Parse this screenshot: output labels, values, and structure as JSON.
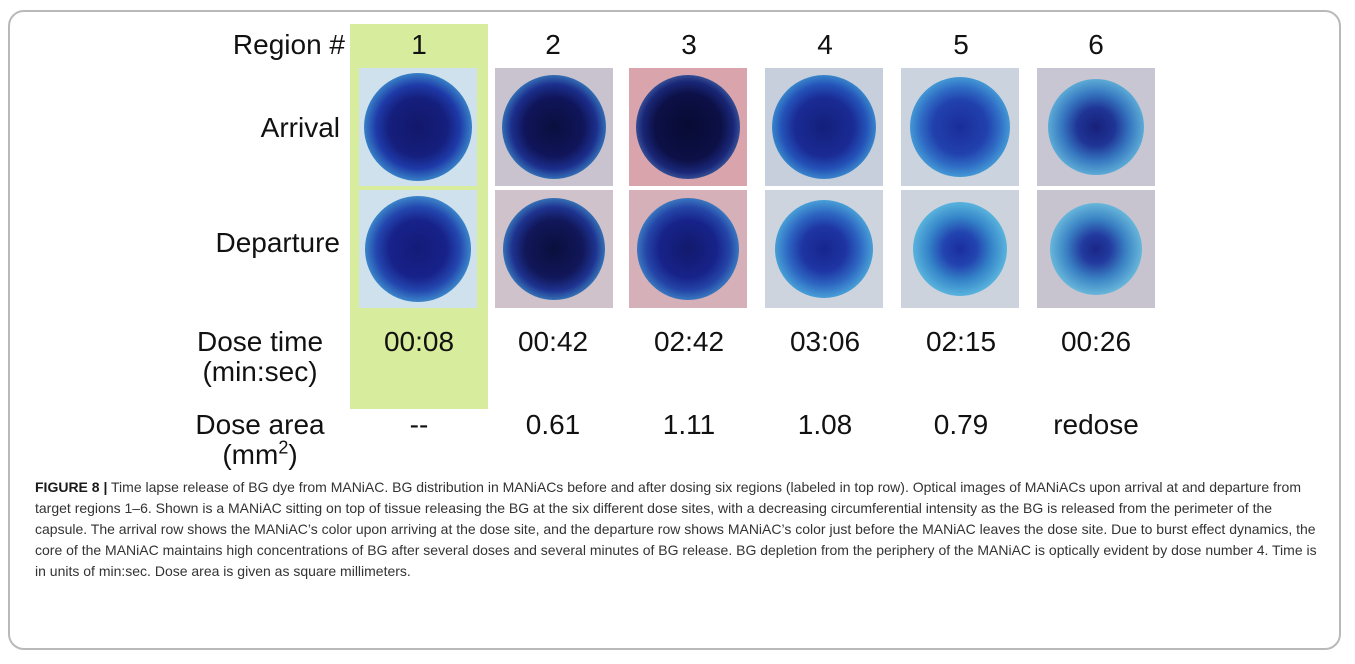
{
  "figure": {
    "header_label": "Region #",
    "regions": [
      "1",
      "2",
      "3",
      "4",
      "5",
      "6"
    ],
    "row_labels": {
      "arrival": "Arrival",
      "departure": "Departure",
      "dose_time_line1": "Dose time",
      "dose_time_line2": "(min:sec)",
      "dose_area_line1": "Dose area",
      "dose_area_line2_pre": "(mm",
      "dose_area_line2_sup": "2",
      "dose_area_line2_post": ")"
    },
    "dose_times": [
      "00:08",
      "00:42",
      "02:42",
      "03:06",
      "02:15",
      "00:26"
    ],
    "dose_areas": [
      "--",
      "0.61",
      "1.11",
      "1.08",
      "0.79",
      "redose"
    ],
    "highlight_color": "#d7ec9d",
    "dye_color": "#1b2f9e"
  },
  "caption": {
    "label": "FIGURE 8 |",
    "text": "Time lapse release of BG dye from MANiAC. BG distribution in MANiACs before and after dosing six regions (labeled in top row). Optical images of MANiACs upon arrival at and departure from target regions 1–6. Shown is a MANiAC sitting on top of tissue releasing the BG at the six different dose sites, with a decreasing circumferential intensity as the BG is released from the perimeter of the capsule. The arrival row shows the MANiAC’s color upon arriving at the dose site, and the departure row shows MANiAC’s color just before the MANiAC leaves the dose site. Due to burst effect dynamics, the core of the MANiAC maintains high concentrations of BG after several doses and several minutes of BG release. BG depletion from the periphery of the MANiAC is optically evident by dose number 4. Time is in units of min:sec. Dose area is given as square millimeters."
  }
}
